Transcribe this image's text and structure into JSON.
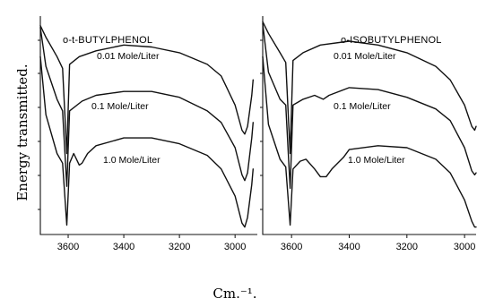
{
  "chart_data": {
    "type": "line",
    "ylabel": "Energy transmitted.",
    "xlabel": "Cm.⁻¹.",
    "panels": [
      {
        "title": "o-t-BUTYLPHENOL",
        "xlim": [
          3700,
          2920
        ],
        "xticks": [
          "3600",
          "3400",
          "3200",
          "3000"
        ],
        "series": [
          {
            "name": "0.01 Mole/Liter",
            "points": [
              [
                3700,
                0.96
              ],
              [
                3680,
                0.9
              ],
              [
                3640,
                0.8
              ],
              [
                3620,
                0.74
              ],
              [
                3605,
                0.3
              ],
              [
                3595,
                0.76
              ],
              [
                3560,
                0.8
              ],
              [
                3500,
                0.83
              ],
              [
                3400,
                0.86
              ],
              [
                3300,
                0.85
              ],
              [
                3200,
                0.82
              ],
              [
                3100,
                0.76
              ],
              [
                3050,
                0.7
              ],
              [
                3000,
                0.55
              ],
              [
                2975,
                0.42
              ],
              [
                2965,
                0.4
              ],
              [
                2955,
                0.44
              ],
              [
                2940,
                0.6
              ],
              [
                2935,
                0.68
              ]
            ]
          },
          {
            "name": "0.1 Mole/Liter",
            "points": [
              [
                3700,
                0.95
              ],
              [
                3680,
                0.75
              ],
              [
                3640,
                0.58
              ],
              [
                3620,
                0.52
              ],
              [
                3605,
                0.13
              ],
              [
                3595,
                0.52
              ],
              [
                3550,
                0.57
              ],
              [
                3500,
                0.6
              ],
              [
                3400,
                0.62
              ],
              [
                3300,
                0.62
              ],
              [
                3200,
                0.59
              ],
              [
                3100,
                0.52
              ],
              [
                3050,
                0.46
              ],
              [
                3000,
                0.33
              ],
              [
                2975,
                0.19
              ],
              [
                2965,
                0.16
              ],
              [
                2955,
                0.2
              ],
              [
                2940,
                0.38
              ],
              [
                2935,
                0.46
              ]
            ]
          },
          {
            "name": "1.0 Mole/Liter",
            "points": [
              [
                3700,
                0.8
              ],
              [
                3680,
                0.5
              ],
              [
                3640,
                0.3
              ],
              [
                3620,
                0.25
              ],
              [
                3605,
                -0.07
              ],
              [
                3595,
                0.25
              ],
              [
                3580,
                0.3
              ],
              [
                3570,
                0.27
              ],
              [
                3560,
                0.24
              ],
              [
                3550,
                0.25
              ],
              [
                3530,
                0.3
              ],
              [
                3500,
                0.34
              ],
              [
                3400,
                0.38
              ],
              [
                3300,
                0.38
              ],
              [
                3200,
                0.35
              ],
              [
                3100,
                0.29
              ],
              [
                3050,
                0.22
              ],
              [
                3000,
                0.08
              ],
              [
                2975,
                -0.06
              ],
              [
                2965,
                -0.08
              ],
              [
                2955,
                -0.03
              ],
              [
                2940,
                0.14
              ],
              [
                2935,
                0.22
              ]
            ]
          }
        ]
      },
      {
        "title": "o-ISOBUTYLPHENOL",
        "xlim": [
          3700,
          2960
        ],
        "xticks": [
          "3600",
          "3400",
          "3200",
          "3000"
        ],
        "series": [
          {
            "name": "0.01 Mole/Liter",
            "points": [
              [
                3700,
                0.98
              ],
              [
                3680,
                0.92
              ],
              [
                3640,
                0.82
              ],
              [
                3620,
                0.77
              ],
              [
                3605,
                0.3
              ],
              [
                3595,
                0.78
              ],
              [
                3560,
                0.82
              ],
              [
                3500,
                0.86
              ],
              [
                3400,
                0.88
              ],
              [
                3300,
                0.86
              ],
              [
                3200,
                0.82
              ],
              [
                3100,
                0.75
              ],
              [
                3050,
                0.68
              ],
              [
                3000,
                0.55
              ],
              [
                2975,
                0.44
              ],
              [
                2965,
                0.42
              ],
              [
                2960,
                0.44
              ]
            ]
          },
          {
            "name": "0.1 Mole/Liter",
            "points": [
              [
                3700,
                0.97
              ],
              [
                3680,
                0.72
              ],
              [
                3640,
                0.58
              ],
              [
                3620,
                0.55
              ],
              [
                3605,
                0.12
              ],
              [
                3595,
                0.55
              ],
              [
                3560,
                0.58
              ],
              [
                3520,
                0.6
              ],
              [
                3490,
                0.58
              ],
              [
                3470,
                0.6
              ],
              [
                3400,
                0.64
              ],
              [
                3300,
                0.63
              ],
              [
                3200,
                0.59
              ],
              [
                3100,
                0.53
              ],
              [
                3050,
                0.47
              ],
              [
                3000,
                0.33
              ],
              [
                2975,
                0.21
              ],
              [
                2965,
                0.19
              ],
              [
                2960,
                0.2
              ]
            ]
          },
          {
            "name": "1.0 Mole/Liter",
            "points": [
              [
                3700,
                0.8
              ],
              [
                3680,
                0.45
              ],
              [
                3640,
                0.27
              ],
              [
                3620,
                0.23
              ],
              [
                3605,
                -0.07
              ],
              [
                3595,
                0.22
              ],
              [
                3570,
                0.26
              ],
              [
                3550,
                0.27
              ],
              [
                3520,
                0.22
              ],
              [
                3500,
                0.18
              ],
              [
                3480,
                0.18
              ],
              [
                3460,
                0.22
              ],
              [
                3420,
                0.28
              ],
              [
                3400,
                0.32
              ],
              [
                3300,
                0.34
              ],
              [
                3200,
                0.33
              ],
              [
                3100,
                0.27
              ],
              [
                3050,
                0.2
              ],
              [
                3000,
                0.06
              ],
              [
                2975,
                -0.05
              ],
              [
                2965,
                -0.08
              ],
              [
                2960,
                -0.08
              ]
            ]
          }
        ]
      }
    ]
  }
}
